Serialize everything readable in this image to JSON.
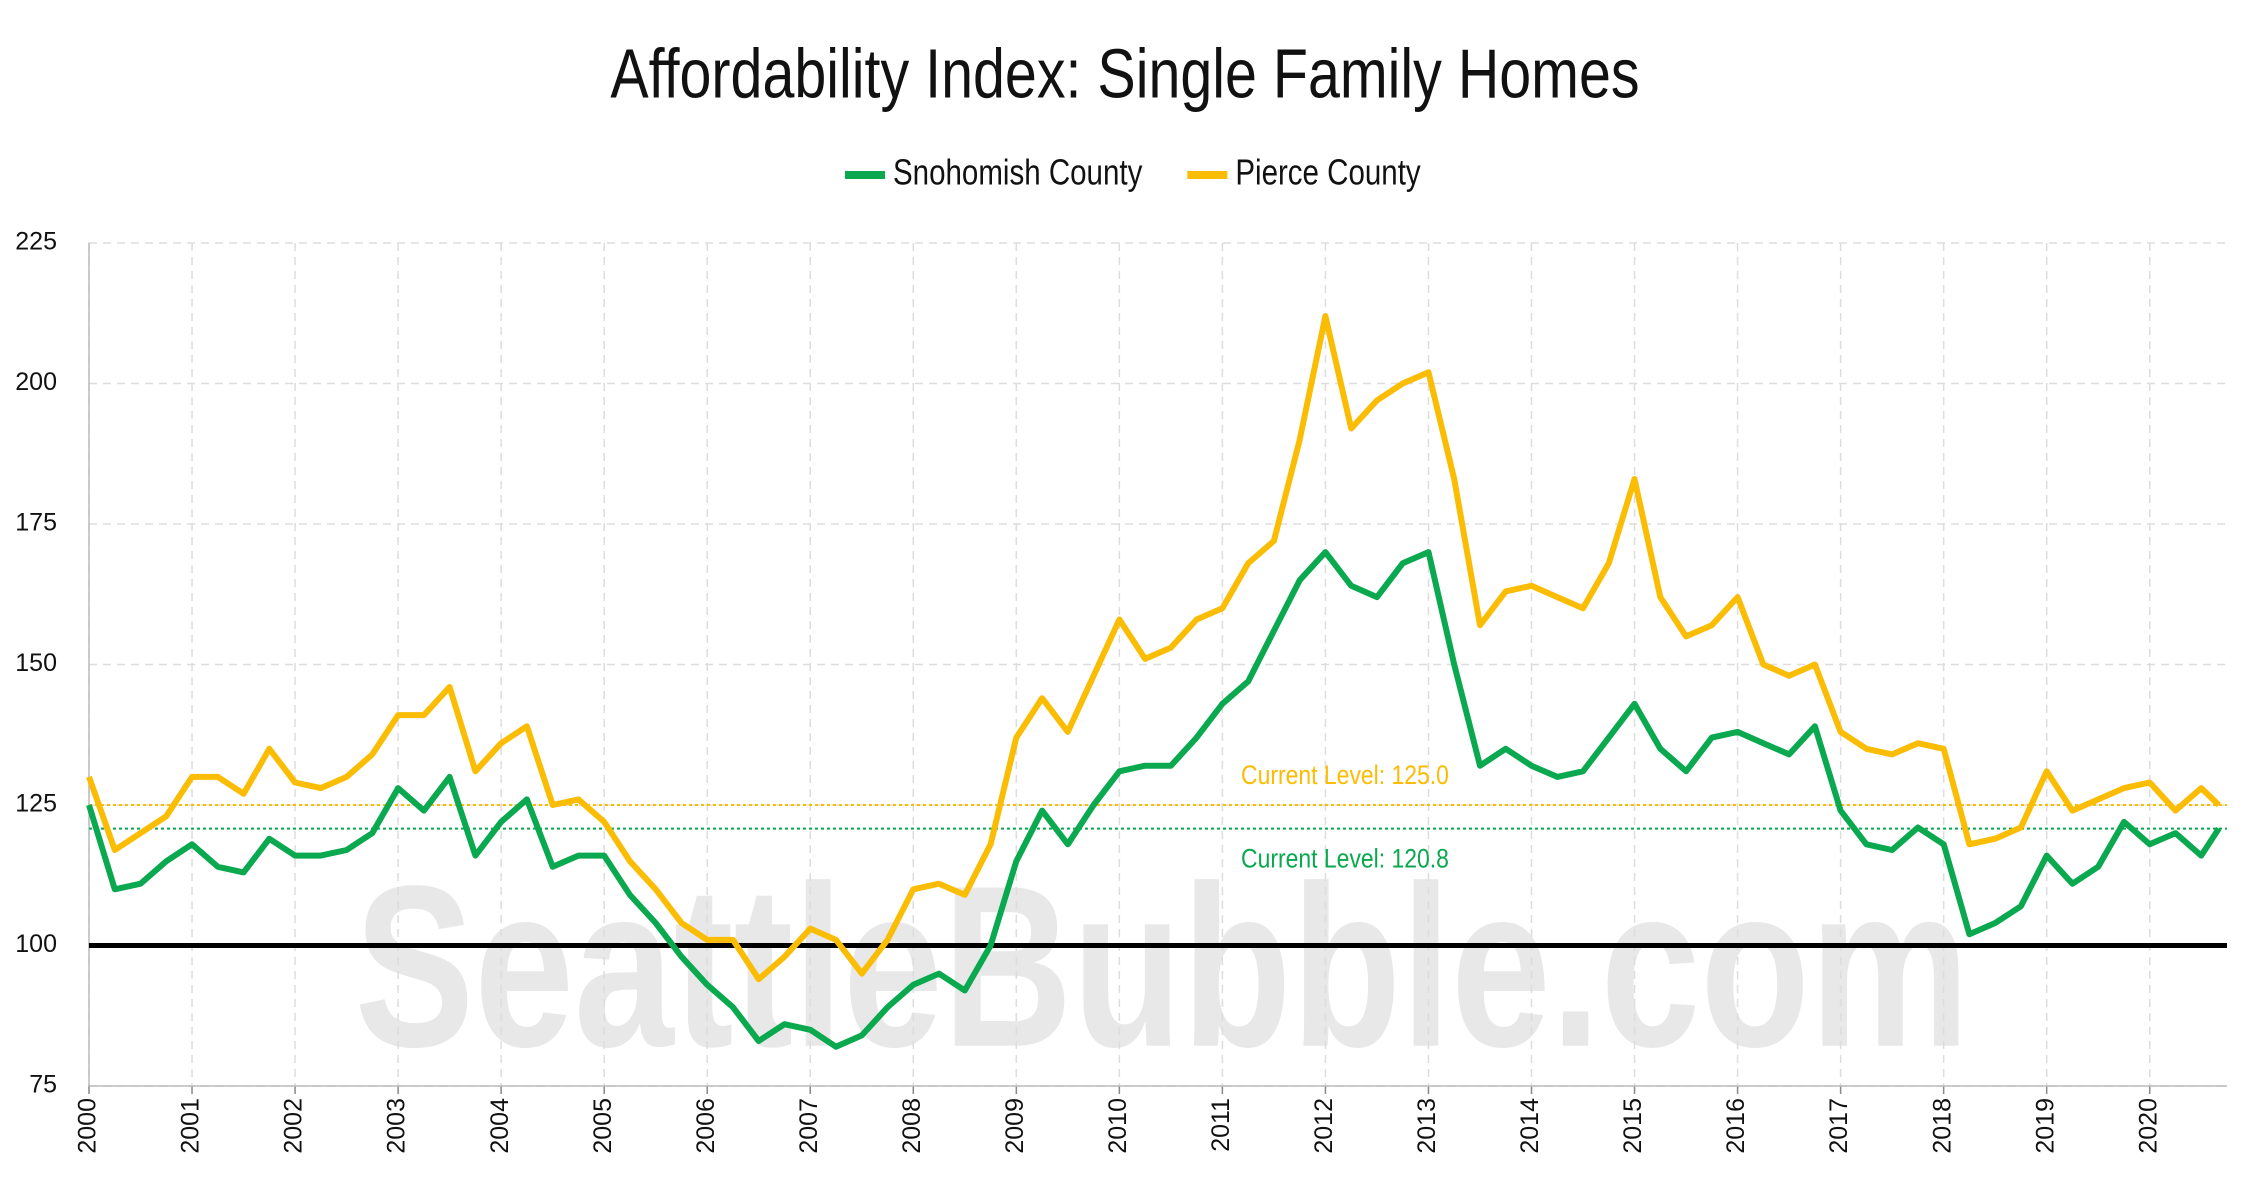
{
  "chart_data": {
    "type": "line",
    "title": "Affordability Index: Single Family Homes",
    "watermark": "SeattleBubble.com",
    "x": [
      2000,
      2000.25,
      2000.5,
      2000.75,
      2001,
      2001.25,
      2001.5,
      2001.75,
      2002,
      2002.25,
      2002.5,
      2002.75,
      2003,
      2003.25,
      2003.5,
      2003.75,
      2004,
      2004.25,
      2004.5,
      2004.75,
      2005,
      2005.25,
      2005.5,
      2005.75,
      2006,
      2006.25,
      2006.5,
      2006.75,
      2007,
      2007.25,
      2007.5,
      2007.75,
      2008,
      2008.25,
      2008.5,
      2008.75,
      2009,
      2009.25,
      2009.5,
      2009.75,
      2010,
      2010.25,
      2010.5,
      2010.75,
      2011,
      2011.25,
      2011.5,
      2011.75,
      2012,
      2012.25,
      2012.5,
      2012.75,
      2013,
      2013.25,
      2013.5,
      2013.75,
      2014,
      2014.25,
      2014.5,
      2014.75,
      2015,
      2015.25,
      2015.5,
      2015.75,
      2016,
      2016.25,
      2016.5,
      2016.75,
      2017,
      2017.25,
      2017.5,
      2017.75,
      2018,
      2018.25,
      2018.5,
      2018.75,
      2019,
      2019.25,
      2019.5,
      2019.75,
      2020,
      2020.25,
      2020.5,
      2020.67
    ],
    "series": [
      {
        "name": "Snohomish County",
        "color": "#0aa84f",
        "values": [
          125,
          110,
          111,
          115,
          118,
          114,
          113,
          119,
          116,
          116,
          117,
          120,
          128,
          124,
          130,
          116,
          122,
          126,
          114,
          116,
          116,
          109,
          104,
          98,
          93,
          89,
          83,
          86,
          85,
          82,
          84,
          89,
          93,
          95,
          92,
          100,
          115,
          124,
          118,
          125,
          131,
          132,
          132,
          137,
          143,
          147,
          156,
          165,
          170,
          164,
          162,
          168,
          170,
          150,
          132,
          135,
          132,
          130,
          131,
          137,
          143,
          135,
          131,
          137,
          138,
          136,
          134,
          139,
          124,
          118,
          117,
          121,
          118,
          102,
          104,
          107,
          116,
          111,
          114,
          122,
          118,
          120,
          116,
          120.8
        ]
      },
      {
        "name": "Pierce County",
        "color": "#fbbc04",
        "values": [
          130,
          117,
          120,
          123,
          130,
          130,
          127,
          135,
          129,
          128,
          130,
          134,
          141,
          141,
          146,
          131,
          136,
          139,
          125,
          126,
          122,
          115,
          110,
          104,
          101,
          101,
          94,
          98,
          103,
          101,
          95,
          101,
          110,
          111,
          109,
          118,
          137,
          144,
          138,
          148,
          158,
          151,
          153,
          158,
          160,
          168,
          172,
          190,
          212,
          192,
          197,
          200,
          202,
          183,
          157,
          163,
          164,
          162,
          160,
          168,
          183,
          162,
          155,
          157,
          162,
          150,
          148,
          150,
          138,
          135,
          134,
          136,
          135,
          118,
          119,
          121,
          131,
          124,
          126,
          128,
          129,
          124,
          128,
          125
        ]
      }
    ],
    "reference_lines": [
      {
        "value": 100,
        "color": "#000000"
      }
    ],
    "annotations": [
      {
        "text": "Current Level: 125.0",
        "value": 125.0,
        "color": "#fbbc04"
      },
      {
        "text": "Current Level: 120.8",
        "value": 120.8,
        "color": "#0aa84f"
      }
    ],
    "xlim": [
      2000,
      2020.75
    ],
    "xticks": [
      2000,
      2001,
      2002,
      2003,
      2004,
      2005,
      2006,
      2007,
      2008,
      2009,
      2010,
      2011,
      2012,
      2013,
      2014,
      2015,
      2016,
      2017,
      2018,
      2019,
      2020
    ],
    "ylim": [
      75,
      225
    ],
    "yticks": [
      75,
      100,
      125,
      150,
      175,
      200,
      225
    ],
    "grid": true,
    "legend": "top"
  }
}
